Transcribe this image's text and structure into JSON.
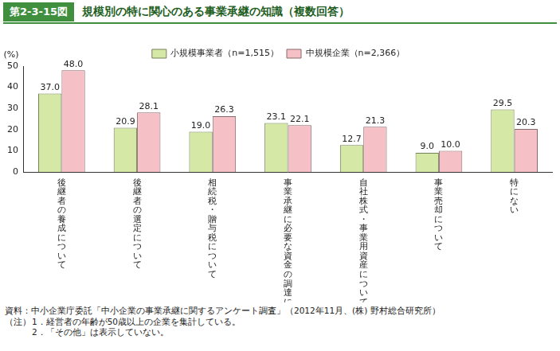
{
  "chart_data": {
    "type": "bar",
    "figure_label": "第2-3-15図",
    "title": "規模別の特に関心のある事業承継の知識（複数回答）",
    "y_label": "(%)",
    "categories": [
      "後継者の養成について",
      "後継者の選定について",
      "相続税・贈与税について",
      "事業承継に必要な資金の調達について",
      "自社株式・事業用資産について",
      "事業売却について",
      "特にない"
    ],
    "series": [
      {
        "name": "小規模事業者（n=1,515）",
        "color": "#d6e8a6",
        "values": [
          37.0,
          20.9,
          19.0,
          23.1,
          12.7,
          9.0,
          29.5
        ],
        "value_labels": [
          "37.0",
          "20.9",
          "19.0",
          "23.1",
          "12.7",
          "9.0",
          "29.5"
        ]
      },
      {
        "name": "中規模企業（n=2,366）",
        "color": "#f5c1c7",
        "values": [
          48.0,
          28.1,
          26.3,
          22.1,
          21.3,
          10.0,
          20.3
        ],
        "value_labels": [
          "48.0",
          "28.1",
          "26.3",
          "22.1",
          "21.3",
          "10.0",
          "20.3"
        ]
      }
    ],
    "ylim": [
      0,
      50
    ],
    "yticks": [
      0,
      10,
      20,
      30,
      40,
      50
    ],
    "grid": false,
    "legend": "top",
    "data_labels": true,
    "source": "資料：中小企業庁委託「中小企業の事業承継に関するアンケート調査」（2012年11月、(株) 野村総合研究所）",
    "notes_label": "（注）",
    "notes": [
      "1．経営者の年齢が50歳以上の企業を集計している。",
      "2．「その他」は表示していない。"
    ]
  }
}
